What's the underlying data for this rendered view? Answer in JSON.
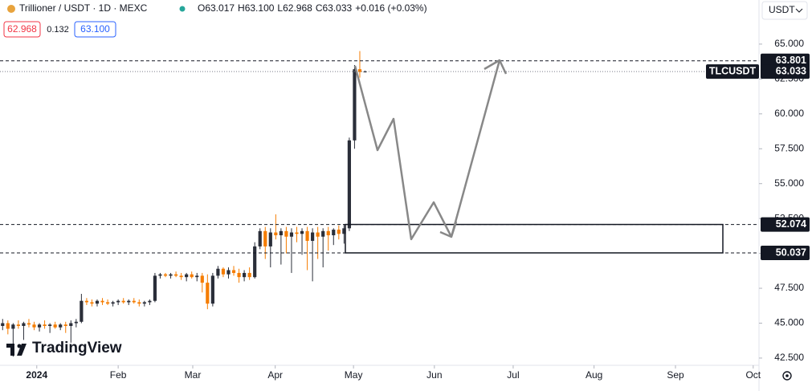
{
  "chart_data": {
    "type": "candlestick",
    "header": {
      "symbol": "Trillioner / USDT · 1D · MEXC",
      "ohlc_text": [
        "O63.017",
        "H63.100",
        "L62.968",
        "C63.033",
        "+0.016 (+0.03%)"
      ],
      "quote": [
        "62.968",
        "0.132",
        "63.100"
      ],
      "currency": "USDT",
      "logo": "TradingView"
    },
    "categories": [
      null,
      null,
      null,
      null,
      null,
      null,
      null,
      null,
      null,
      null,
      null,
      null,
      null,
      null,
      null,
      null,
      null,
      null,
      null,
      null,
      null,
      null,
      null,
      null,
      null,
      null,
      null,
      null,
      null,
      null,
      null,
      null,
      null,
      null,
      null,
      null,
      null,
      null,
      null,
      null,
      null,
      null,
      null,
      null,
      null,
      null,
      null,
      null,
      null,
      null,
      null,
      null,
      null,
      null,
      null,
      null,
      null,
      null,
      null,
      null,
      null,
      null,
      null,
      null,
      null,
      null,
      null,
      null,
      null,
      null
    ],
    "series": [
      {
        "name": "TLCUSDT",
        "up_color": "#2a2e39",
        "down_color": "#f57c00",
        "values": [
          [
            44.8,
            45.3,
            44.5,
            45.0
          ],
          [
            45.0,
            45.2,
            44.2,
            44.6
          ],
          [
            44.6,
            45.0,
            42.6,
            44.9
          ],
          [
            44.9,
            45.2,
            44.6,
            44.8
          ],
          [
            44.8,
            45.1,
            43.8,
            45.0
          ],
          [
            45.0,
            45.3,
            44.7,
            44.9
          ],
          [
            44.9,
            45.1,
            44.5,
            44.7
          ],
          [
            44.7,
            45.0,
            44.4,
            44.9
          ],
          [
            44.9,
            45.2,
            44.6,
            44.8
          ],
          [
            44.8,
            45.0,
            44.3,
            44.9
          ],
          [
            44.9,
            45.1,
            44.6,
            44.7
          ],
          [
            44.7,
            45.0,
            44.5,
            44.9
          ],
          [
            44.9,
            45.1,
            44.3,
            44.8
          ],
          [
            44.8,
            45.2,
            43.6,
            45.0
          ],
          [
            45.0,
            45.3,
            44.7,
            45.1
          ],
          [
            45.1,
            47.1,
            45.0,
            46.6
          ],
          [
            46.6,
            46.8,
            46.3,
            46.5
          ],
          [
            46.5,
            46.7,
            46.2,
            46.4
          ],
          [
            46.4,
            46.7,
            46.2,
            46.6
          ],
          [
            46.6,
            46.8,
            46.3,
            46.5
          ],
          [
            46.5,
            46.7,
            46.3,
            46.4
          ],
          [
            46.4,
            46.6,
            46.2,
            46.5
          ],
          [
            46.5,
            46.7,
            46.3,
            46.6
          ],
          [
            46.6,
            46.8,
            46.4,
            46.5
          ],
          [
            46.5,
            46.7,
            46.3,
            46.6
          ],
          [
            46.6,
            46.8,
            46.4,
            46.5
          ],
          [
            46.5,
            46.7,
            46.2,
            46.4
          ],
          [
            46.4,
            46.6,
            46.2,
            46.5
          ],
          [
            46.5,
            46.7,
            46.3,
            46.6
          ],
          [
            46.6,
            48.6,
            46.5,
            48.4
          ],
          [
            48.4,
            48.6,
            48.2,
            48.5
          ],
          [
            48.5,
            48.6,
            48.3,
            48.4
          ],
          [
            48.4,
            48.6,
            48.2,
            48.5
          ],
          [
            48.5,
            48.7,
            48.3,
            48.4
          ],
          [
            48.4,
            48.6,
            48.1,
            48.3
          ],
          [
            48.3,
            48.6,
            48.0,
            48.5
          ],
          [
            48.5,
            48.7,
            48.2,
            48.3
          ],
          [
            48.3,
            48.6,
            48.0,
            48.4
          ],
          [
            48.4,
            48.6,
            47.2,
            47.9
          ],
          [
            47.9,
            48.5,
            46.0,
            46.4
          ],
          [
            46.4,
            48.6,
            46.2,
            48.4
          ],
          [
            48.4,
            49.1,
            48.2,
            48.9
          ],
          [
            48.9,
            49.0,
            48.3,
            48.5
          ],
          [
            48.5,
            49.0,
            48.2,
            48.8
          ],
          [
            48.8,
            49.1,
            48.4,
            48.6
          ],
          [
            48.6,
            48.9,
            47.9,
            48.3
          ],
          [
            48.3,
            48.8,
            48.0,
            48.6
          ],
          [
            48.6,
            49.0,
            48.1,
            48.3
          ],
          [
            48.3,
            50.8,
            48.2,
            50.5
          ],
          [
            50.5,
            51.8,
            50.3,
            51.6
          ],
          [
            51.6,
            51.9,
            49.6,
            50.5
          ],
          [
            50.5,
            51.8,
            49.0,
            51.5
          ],
          [
            51.5,
            52.8,
            51.0,
            51.3
          ],
          [
            51.3,
            51.8,
            49.2,
            51.6
          ],
          [
            51.6,
            51.9,
            50.0,
            51.2
          ],
          [
            51.2,
            51.8,
            48.6,
            51.5
          ],
          [
            51.5,
            51.9,
            50.8,
            51.4
          ],
          [
            51.4,
            51.8,
            49.9,
            51.6
          ],
          [
            51.6,
            51.9,
            48.8,
            50.9
          ],
          [
            50.9,
            51.8,
            48.0,
            51.5
          ],
          [
            51.5,
            51.9,
            49.6,
            51.2
          ],
          [
            51.2,
            51.8,
            49.0,
            51.6
          ],
          [
            51.6,
            51.9,
            50.2,
            51.3
          ],
          [
            51.3,
            51.8,
            50.6,
            51.7
          ],
          [
            51.7,
            52.0,
            51.0,
            51.4
          ],
          [
            51.4,
            52.1,
            50.7,
            51.8
          ],
          [
            51.8,
            58.3,
            51.6,
            58.1
          ],
          [
            58.1,
            63.5,
            57.5,
            63.2
          ],
          [
            63.2,
            64.5,
            62.6,
            63.0
          ],
          [
            63.017,
            63.1,
            62.968,
            63.033
          ]
        ]
      }
    ],
    "levels": [
      63.801,
      52.074,
      50.037
    ],
    "last_price": 63.033,
    "xlim": [
      0,
      144.5
    ],
    "xticks": [
      {
        "value": 7,
        "label": "2024"
      },
      {
        "value": 22.5,
        "label": "Feb"
      },
      {
        "value": 36.7,
        "label": "Mar"
      },
      {
        "value": 52.4,
        "label": "Apr"
      },
      {
        "value": 67.3,
        "label": "May"
      },
      {
        "value": 82.7,
        "label": "Jun"
      },
      {
        "value": 97.7,
        "label": "Jul"
      },
      {
        "value": 113.1,
        "label": "Aug"
      },
      {
        "value": 128.6,
        "label": "Sep"
      },
      {
        "value": 143.4,
        "label": "Oct"
      }
    ],
    "ylim": [
      41.98,
      68.16
    ],
    "yticks": [
      {
        "value": 42.5,
        "label": "42.500"
      },
      {
        "value": 45,
        "label": "45.000"
      },
      {
        "value": 47.5,
        "label": "47.500"
      },
      {
        "value": 50,
        "label": "50.000"
      },
      {
        "value": 52.5,
        "label": "52.500"
      },
      {
        "value": 55,
        "label": "55.000"
      },
      {
        "value": 57.5,
        "label": "57.500"
      },
      {
        "value": 60,
        "label": "60.000"
      },
      {
        "value": 62.5,
        "label": "62.500"
      },
      {
        "value": 65,
        "label": "65.000"
      }
    ],
    "grid": false
  }
}
